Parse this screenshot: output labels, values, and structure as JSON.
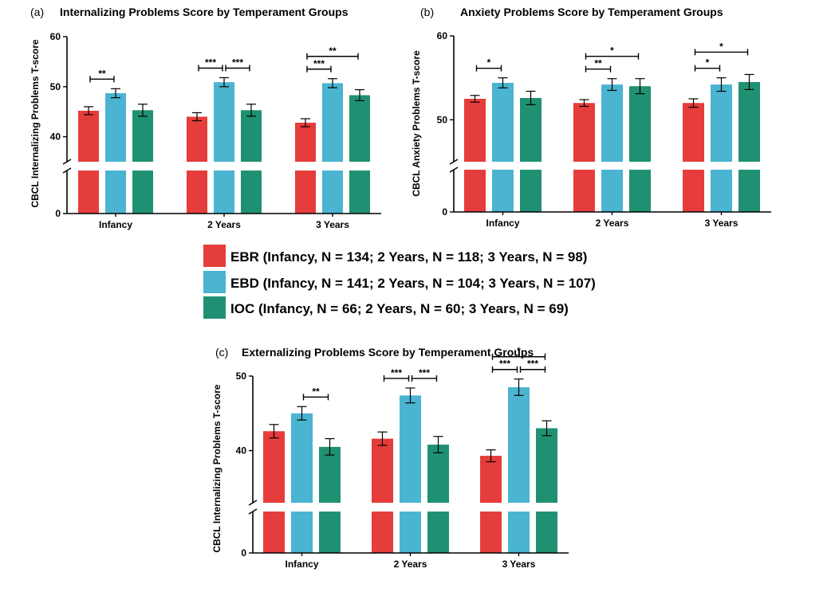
{
  "colors": {
    "EBR": "#e53d3b",
    "EBD": "#4ab4d1",
    "IOC": "#1f9172"
  },
  "legend": [
    {
      "key": "EBR",
      "label": "EBR (Infancy, N = 134; 2 Years, N = 118; 3 Years, N = 98)"
    },
    {
      "key": "EBD",
      "label": "EBD (Infancy, N = 141; 2 Years, N = 104; 3 Years, N = 107)"
    },
    {
      "key": "IOC",
      "label": "IOC  (Infancy, N = 66; 2 Years, N = 60; 3 Years, N = 69)"
    }
  ],
  "chart_data": [
    {
      "panel": "(a)",
      "type": "bar",
      "title": "Internalizing Problems Score by Temperament Groups",
      "ylabel": "CBCL Internalizing Problems T-score",
      "ylim": [
        0,
        60
      ],
      "axis_break": true,
      "yticks": [
        0,
        40,
        50,
        60
      ],
      "categories": [
        "Infancy",
        "2 Years",
        "3 Years"
      ],
      "series": [
        {
          "name": "EBR",
          "values": [
            45.2,
            44.0,
            42.8
          ],
          "errors": [
            0.8,
            0.8,
            0.8
          ]
        },
        {
          "name": "EBD",
          "values": [
            48.7,
            50.9,
            50.7
          ],
          "errors": [
            0.9,
            0.9,
            0.9
          ]
        },
        {
          "name": "IOC",
          "values": [
            45.3,
            45.3,
            48.3
          ],
          "errors": [
            1.2,
            1.2,
            1.1
          ]
        }
      ],
      "significance": [
        {
          "category": 0,
          "from": 0,
          "to": 1,
          "label": "**",
          "level": 0
        },
        {
          "category": 1,
          "from": 0,
          "to": 1,
          "label": "***",
          "level": 0
        },
        {
          "category": 1,
          "from": 1,
          "to": 2,
          "label": "***",
          "level": 0
        },
        {
          "category": 2,
          "from": 0,
          "to": 1,
          "label": "***",
          "level": 0
        },
        {
          "category": 2,
          "from": 0,
          "to": 2,
          "label": "**",
          "level": 1
        }
      ]
    },
    {
      "panel": "(b)",
      "type": "bar",
      "title": "Anxiety Problems Score by Temperament Groups",
      "ylabel": "CBCL Anxiety Problems T-score",
      "ylim": [
        0,
        60
      ],
      "axis_break": true,
      "yticks": [
        0,
        50,
        60
      ],
      "categories": [
        "Infancy",
        "2 Years",
        "3 Years"
      ],
      "series": [
        {
          "name": "EBR",
          "values": [
            52.5,
            52.0,
            52.0
          ],
          "errors": [
            0.4,
            0.4,
            0.5
          ]
        },
        {
          "name": "EBD",
          "values": [
            54.4,
            54.2,
            54.2
          ],
          "errors": [
            0.6,
            0.7,
            0.8
          ]
        },
        {
          "name": "IOC",
          "values": [
            52.6,
            54.0,
            54.5
          ],
          "errors": [
            0.8,
            0.9,
            0.9
          ]
        }
      ],
      "significance": [
        {
          "category": 0,
          "from": 0,
          "to": 1,
          "label": "*",
          "level": 0
        },
        {
          "category": 1,
          "from": 0,
          "to": 1,
          "label": "**",
          "level": 0
        },
        {
          "category": 1,
          "from": 0,
          "to": 2,
          "label": "*",
          "level": 1
        },
        {
          "category": 2,
          "from": 0,
          "to": 1,
          "label": "*",
          "level": 0
        },
        {
          "category": 2,
          "from": 0,
          "to": 2,
          "label": "*",
          "level": 1
        }
      ]
    },
    {
      "panel": "(c)",
      "type": "bar",
      "title": "Externalizing Problems Score by Temperament Groups",
      "ylabel": "CBCL Internalizing Problems T-score",
      "ylim": [
        0,
        50
      ],
      "axis_break": true,
      "yticks": [
        0,
        40,
        50
      ],
      "categories": [
        "Infancy",
        "2 Years",
        "3 Years"
      ],
      "series": [
        {
          "name": "EBR",
          "values": [
            42.6,
            41.6,
            39.3
          ],
          "errors": [
            0.9,
            0.9,
            0.8
          ]
        },
        {
          "name": "EBD",
          "values": [
            45.0,
            47.4,
            48.5
          ],
          "errors": [
            0.9,
            1.0,
            1.1
          ]
        },
        {
          "name": "IOC",
          "values": [
            40.5,
            40.8,
            43.0
          ],
          "errors": [
            1.1,
            1.1,
            1.0
          ]
        }
      ],
      "significance": [
        {
          "category": 0,
          "from": 1,
          "to": 2,
          "label": "**",
          "level": 0
        },
        {
          "category": 1,
          "from": 0,
          "to": 1,
          "label": "***",
          "level": 0
        },
        {
          "category": 1,
          "from": 1,
          "to": 2,
          "label": "***",
          "level": 0
        },
        {
          "category": 2,
          "from": 0,
          "to": 1,
          "label": "***",
          "level": 0
        },
        {
          "category": 2,
          "from": 1,
          "to": 2,
          "label": "***",
          "level": 0
        },
        {
          "category": 2,
          "from": 0,
          "to": 2,
          "label": "*",
          "level": 1
        }
      ]
    }
  ]
}
